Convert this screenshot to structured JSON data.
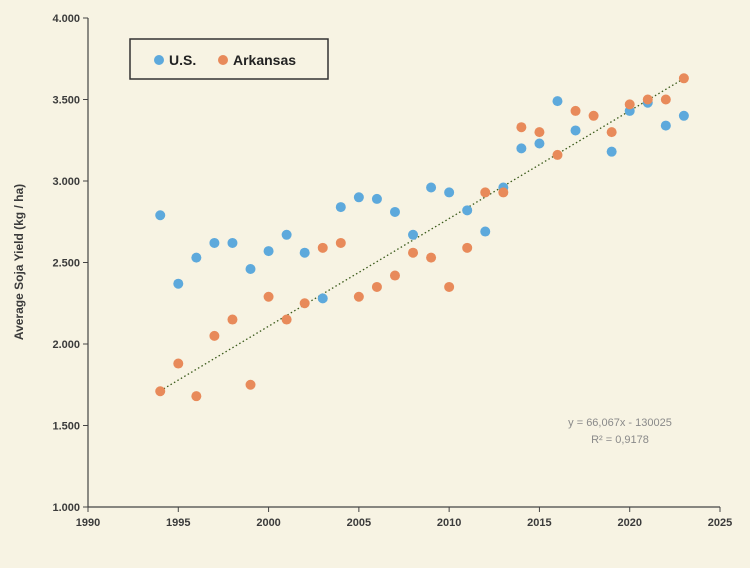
{
  "colors": {
    "background": "#f7f3e3",
    "us": "#5da9dc",
    "arkansas": "#e88a5a",
    "trendline": "#3a5a1a",
    "axis": "#444444"
  },
  "chart_data": {
    "type": "scatter",
    "title": "",
    "xlabel": "",
    "ylabel": "Average Soja Yield (kg / ha)",
    "xlim": [
      1990,
      2025
    ],
    "ylim": [
      1000,
      4000
    ],
    "x_ticks": [
      1990,
      1995,
      2000,
      2005,
      2010,
      2015,
      2020,
      2025
    ],
    "x_tick_labels": [
      "1990",
      "1995",
      "2000",
      "2005",
      "2010",
      "2015",
      "2020",
      "2025"
    ],
    "y_ticks": [
      1000,
      1500,
      2000,
      2500,
      3000,
      3500,
      4000
    ],
    "y_tick_labels": [
      "1.000",
      "1.500",
      "2.000",
      "2.500",
      "3.000",
      "3.500",
      "4.000"
    ],
    "legend": {
      "position": "top-left",
      "entries": [
        "U.S.",
        "Arkansas"
      ]
    },
    "series": [
      {
        "name": "U.S.",
        "color": "#5da9dc",
        "x": [
          1994,
          1995,
          1996,
          1997,
          1998,
          1999,
          2000,
          2001,
          2002,
          2003,
          2004,
          2005,
          2006,
          2007,
          2008,
          2009,
          2010,
          2011,
          2012,
          2013,
          2014,
          2015,
          2016,
          2017,
          2019,
          2020,
          2021,
          2022,
          2023
        ],
        "y": [
          2790,
          2370,
          2530,
          2620,
          2620,
          2460,
          2570,
          2670,
          2560,
          2280,
          2840,
          2900,
          2890,
          2810,
          2670,
          2960,
          2930,
          2820,
          2690,
          2960,
          3200,
          3230,
          3490,
          3310,
          3180,
          3430,
          3480,
          3340,
          3400
        ]
      },
      {
        "name": "Arkansas",
        "color": "#e88a5a",
        "x": [
          1994,
          1995,
          1996,
          1997,
          1998,
          1999,
          2000,
          2001,
          2002,
          2003,
          2004,
          2005,
          2006,
          2007,
          2008,
          2009,
          2010,
          2011,
          2012,
          2013,
          2014,
          2015,
          2016,
          2017,
          2018,
          2019,
          2020,
          2021,
          2022,
          2023
        ],
        "y": [
          1710,
          1880,
          1680,
          2050,
          2150,
          1750,
          2290,
          2150,
          2250,
          2590,
          2620,
          2290,
          2350,
          2420,
          2560,
          2530,
          2350,
          2590,
          2930,
          2930,
          3330,
          3300,
          3160,
          3430,
          3400,
          3300,
          3470,
          3500,
          3500,
          3630
        ]
      }
    ],
    "trendline": {
      "series": "Arkansas",
      "style": "dotted",
      "x_range": [
        1994,
        2023
      ],
      "equation": "y = 66,067x - 130025",
      "r_squared": "R² = 0,9178",
      "slope": 66.067,
      "intercept": -130025
    }
  }
}
